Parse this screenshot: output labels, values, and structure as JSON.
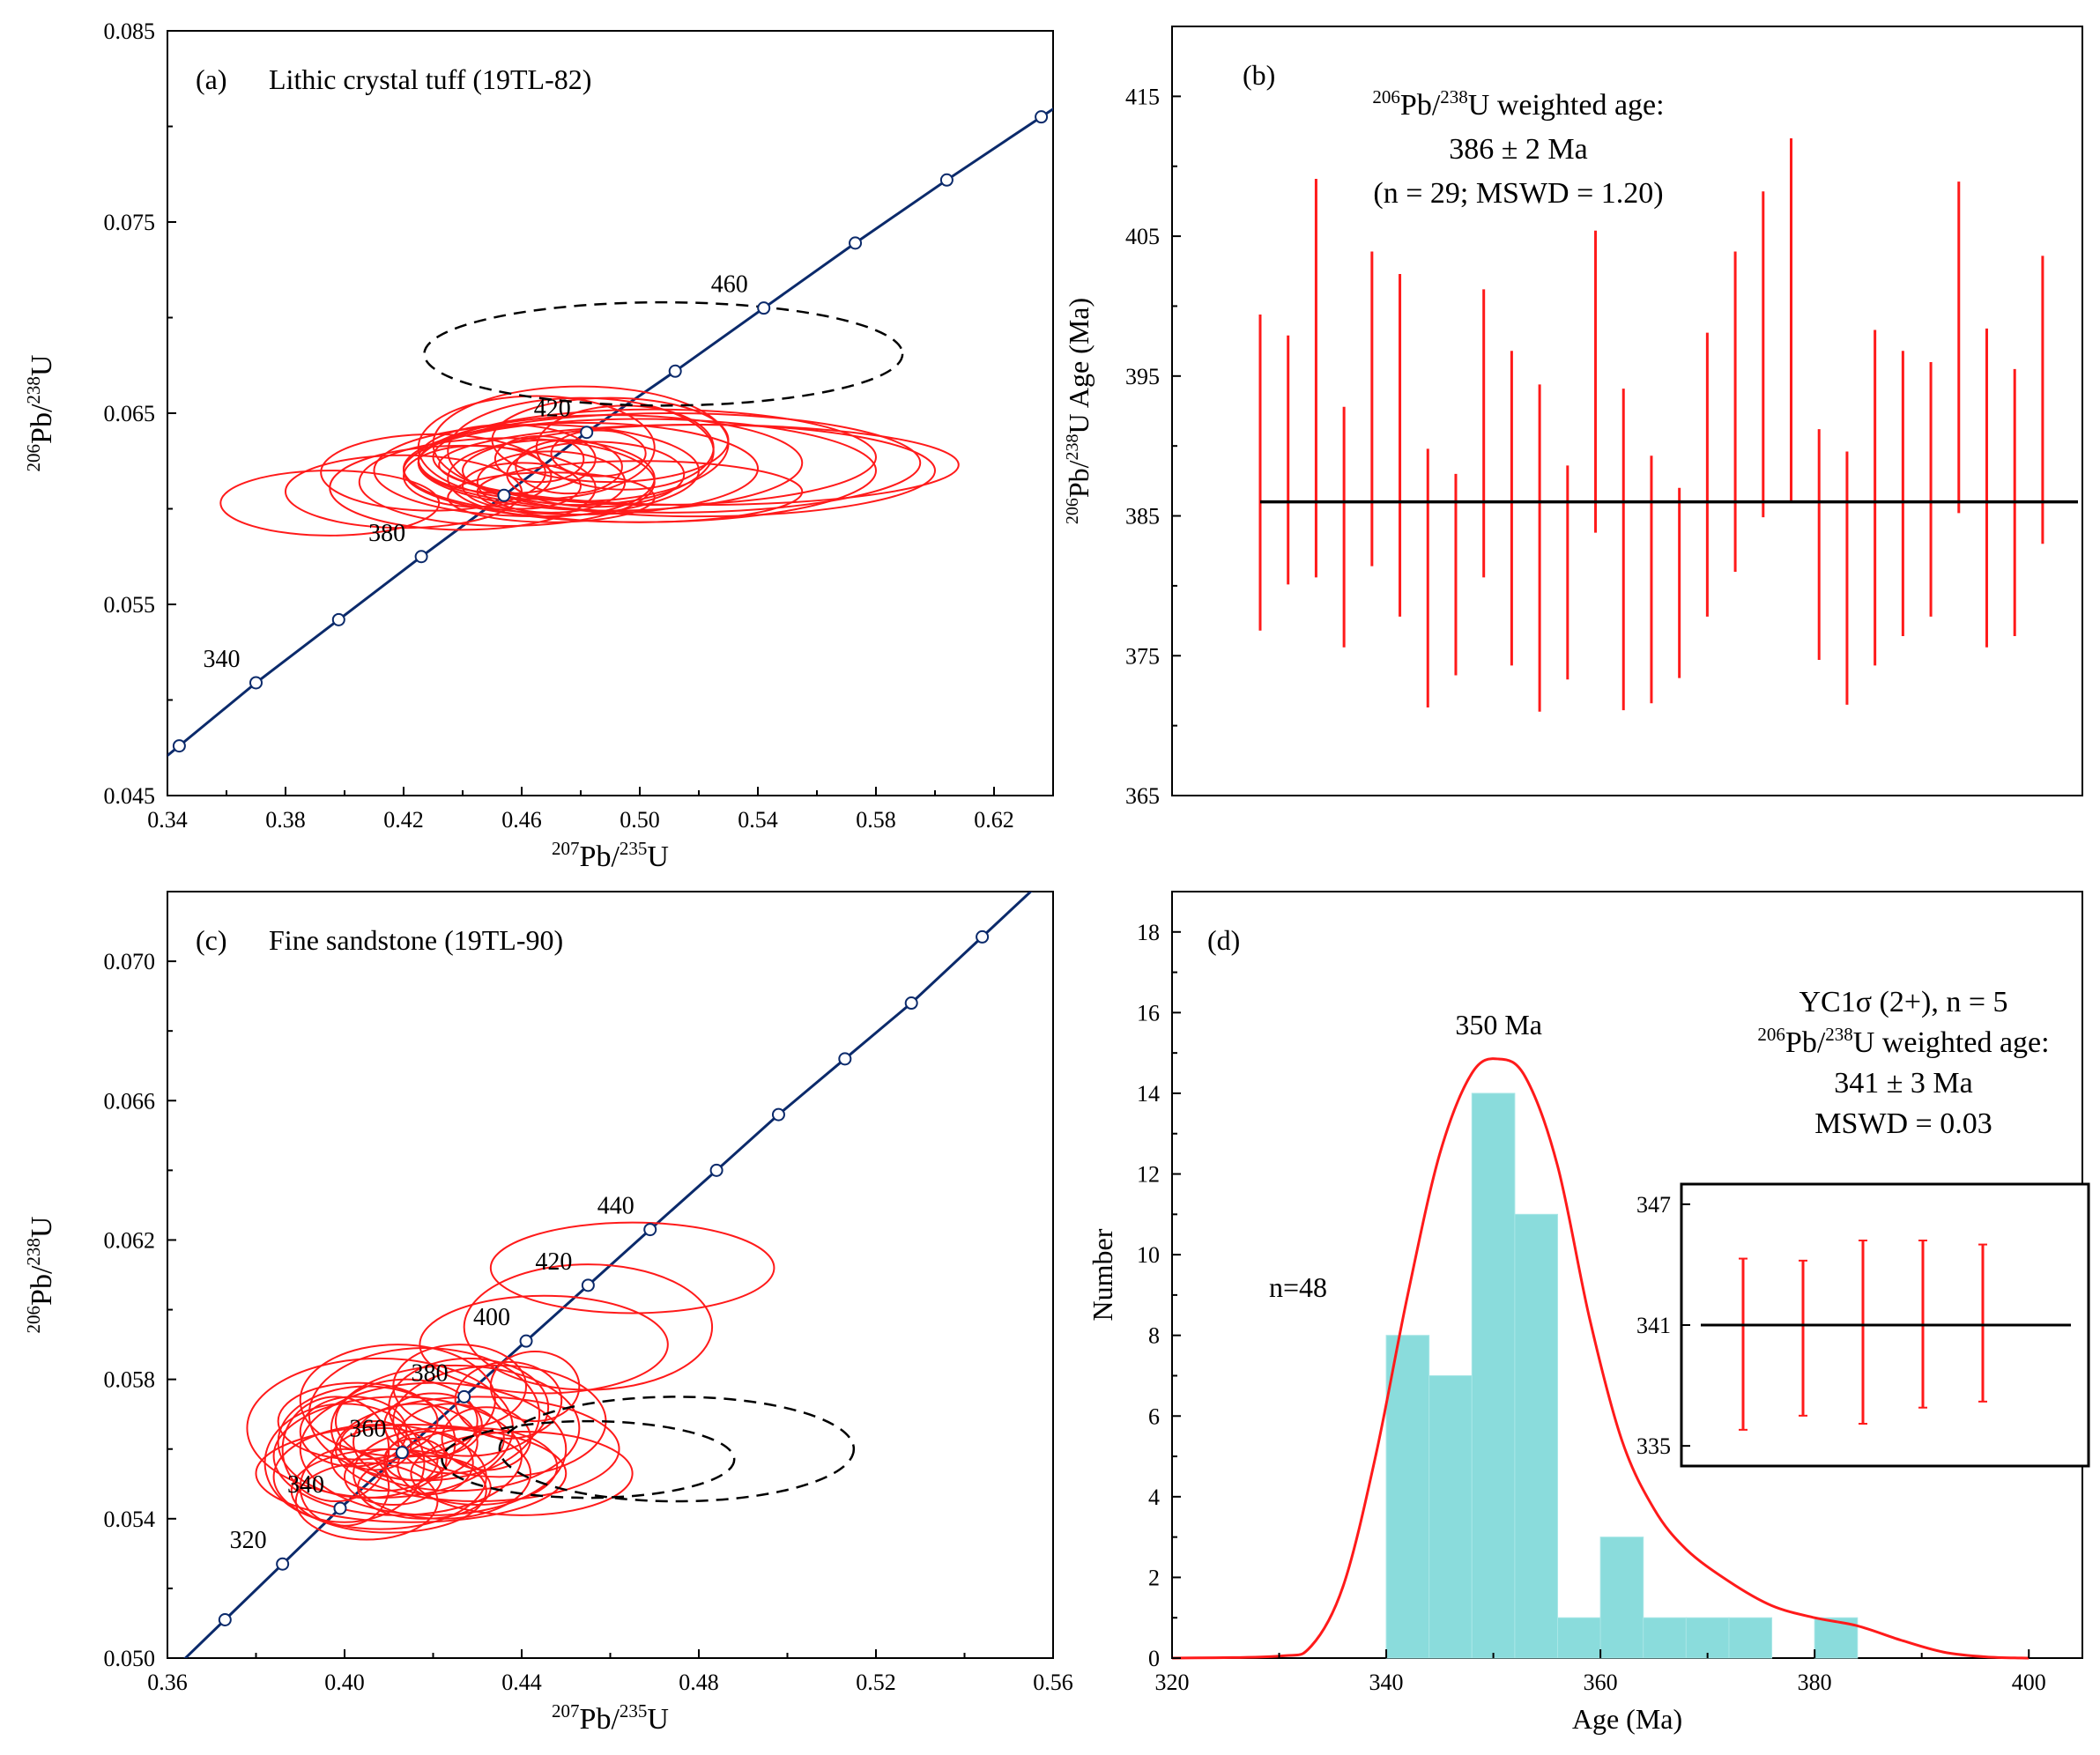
{
  "colors": {
    "concordia": "#0b2a6b",
    "ellipse": "#ff1a1a",
    "dashed": "#000000",
    "bar": "#8adcdc",
    "kde": "#ff1a1a",
    "mean": "#000000"
  },
  "chart_data": [
    {
      "id": "a",
      "type": "scatter",
      "subtype": "concordia",
      "panel_label": "(a)",
      "title": "Lithic crystal tuff (19TL-82)",
      "xlabel_parts": [
        "207",
        "Pb/",
        "235",
        "U"
      ],
      "ylabel_parts": [
        "206",
        "Pb/",
        "238",
        "U"
      ],
      "xlim": [
        0.34,
        0.64
      ],
      "ylim": [
        0.045,
        0.085
      ],
      "x_ticks": [
        0.34,
        0.38,
        0.42,
        0.46,
        0.5,
        0.54,
        0.58,
        0.62
      ],
      "x_tick_labels": [
        "0.34",
        "0.38",
        "0.42",
        "0.46",
        "0.50",
        "0.54",
        "0.58",
        "0.62"
      ],
      "y_ticks": [
        0.045,
        0.055,
        0.065,
        0.075,
        0.085
      ],
      "y_tick_labels": [
        "0.045",
        "0.055",
        "0.065",
        "0.075",
        "0.085"
      ],
      "age_labels": [
        {
          "age": 340,
          "text": "340"
        },
        {
          "age": 380,
          "text": "380"
        },
        {
          "age": 420,
          "text": "420"
        },
        {
          "age": 460,
          "text": "460"
        }
      ],
      "concordia_points": [
        {
          "x": 0.344,
          "y": 0.0476
        },
        {
          "x": 0.37,
          "y": 0.0509
        },
        {
          "x": 0.398,
          "y": 0.0542
        },
        {
          "x": 0.426,
          "y": 0.0575
        },
        {
          "x": 0.454,
          "y": 0.0607
        },
        {
          "x": 0.482,
          "y": 0.064
        },
        {
          "x": 0.512,
          "y": 0.0672
        },
        {
          "x": 0.542,
          "y": 0.0705
        },
        {
          "x": 0.573,
          "y": 0.0739
        },
        {
          "x": 0.604,
          "y": 0.0772
        },
        {
          "x": 0.636,
          "y": 0.0805
        }
      ],
      "ellipses": [
        {
          "cx": 0.395,
          "cy": 0.0603,
          "rx": 0.037,
          "ry": 0.0017
        },
        {
          "cx": 0.42,
          "cy": 0.0609,
          "rx": 0.04,
          "ry": 0.0019
        },
        {
          "cx": 0.44,
          "cy": 0.0611,
          "rx": 0.045,
          "ry": 0.0022
        },
        {
          "cx": 0.455,
          "cy": 0.0614,
          "rx": 0.05,
          "ry": 0.0023
        },
        {
          "cx": 0.43,
          "cy": 0.0619,
          "rx": 0.038,
          "ry": 0.002
        },
        {
          "cx": 0.465,
          "cy": 0.062,
          "rx": 0.055,
          "ry": 0.0024
        },
        {
          "cx": 0.47,
          "cy": 0.0616,
          "rx": 0.035,
          "ry": 0.002
        },
        {
          "cx": 0.48,
          "cy": 0.0621,
          "rx": 0.06,
          "ry": 0.0024
        },
        {
          "cx": 0.49,
          "cy": 0.0624,
          "rx": 0.065,
          "ry": 0.0025
        },
        {
          "cx": 0.5,
          "cy": 0.062,
          "rx": 0.08,
          "ry": 0.0027
        },
        {
          "cx": 0.51,
          "cy": 0.0624,
          "rx": 0.085,
          "ry": 0.0026
        },
        {
          "cx": 0.52,
          "cy": 0.062,
          "rx": 0.08,
          "ry": 0.0024
        },
        {
          "cx": 0.52,
          "cy": 0.0623,
          "rx": 0.088,
          "ry": 0.0021
        },
        {
          "cx": 0.505,
          "cy": 0.0627,
          "rx": 0.075,
          "ry": 0.0025
        },
        {
          "cx": 0.48,
          "cy": 0.063,
          "rx": 0.045,
          "ry": 0.0028
        },
        {
          "cx": 0.465,
          "cy": 0.0632,
          "rx": 0.04,
          "ry": 0.0027
        },
        {
          "cx": 0.49,
          "cy": 0.0636,
          "rx": 0.04,
          "ry": 0.0022
        },
        {
          "cx": 0.455,
          "cy": 0.0626,
          "rx": 0.03,
          "ry": 0.0018
        },
        {
          "cx": 0.47,
          "cy": 0.0614,
          "rx": 0.025,
          "ry": 0.0016
        },
        {
          "cx": 0.485,
          "cy": 0.0618,
          "rx": 0.03,
          "ry": 0.0017
        },
        {
          "cx": 0.476,
          "cy": 0.0622,
          "rx": 0.018,
          "ry": 0.0014
        },
        {
          "cx": 0.466,
          "cy": 0.0626,
          "rx": 0.015,
          "ry": 0.0012
        },
        {
          "cx": 0.486,
          "cy": 0.0629,
          "rx": 0.016,
          "ry": 0.0012
        },
        {
          "cx": 0.445,
          "cy": 0.0617,
          "rx": 0.025,
          "ry": 0.0016
        },
        {
          "cx": 0.5,
          "cy": 0.0609,
          "rx": 0.055,
          "ry": 0.0016
        },
        {
          "cx": 0.47,
          "cy": 0.0606,
          "rx": 0.035,
          "ry": 0.0013
        },
        {
          "cx": 0.495,
          "cy": 0.0632,
          "rx": 0.03,
          "ry": 0.0022
        },
        {
          "cx": 0.48,
          "cy": 0.0634,
          "rx": 0.05,
          "ry": 0.003
        },
        {
          "cx": 0.46,
          "cy": 0.0612,
          "rx": 0.02,
          "ry": 0.0012
        }
      ],
      "dashed_ellipses": [
        {
          "cx": 0.508,
          "cy": 0.0681,
          "rx": 0.081,
          "ry": 0.0027
        }
      ]
    },
    {
      "id": "b",
      "type": "errorbar",
      "panel_label": "(b)",
      "annotation_line1_parts": [
        "206",
        "Pb/",
        "238",
        "U weighted age:"
      ],
      "annotation_line2": "386 ± 2 Ma",
      "annotation_line3": "(n = 29; MSWD = 1.20)",
      "ylabel_parts": [
        "206",
        "Pb/",
        "238",
        "U Age (Ma)"
      ],
      "ylim": [
        365,
        420
      ],
      "y_ticks": [
        365,
        375,
        385,
        395,
        405,
        415
      ],
      "y_tick_labels": [
        "365",
        "375",
        "385",
        "395",
        "405",
        "415"
      ],
      "mean": 386.0,
      "intervals": [
        [
          376.8,
          399.4
        ],
        [
          380.1,
          397.9
        ],
        [
          380.6,
          409.1
        ],
        [
          375.6,
          392.8
        ],
        [
          381.4,
          403.9
        ],
        [
          377.8,
          402.3
        ],
        [
          371.3,
          389.8
        ],
        [
          373.6,
          388.0
        ],
        [
          380.6,
          401.2
        ],
        [
          374.3,
          396.8
        ],
        [
          371.0,
          394.4
        ],
        [
          373.3,
          388.6
        ],
        [
          383.8,
          405.4
        ],
        [
          371.1,
          394.1
        ],
        [
          371.6,
          389.3
        ],
        [
          373.4,
          387.0
        ],
        [
          377.8,
          398.1
        ],
        [
          381.0,
          403.9
        ],
        [
          384.9,
          408.2
        ],
        [
          386.0,
          412.0
        ],
        [
          374.7,
          391.2
        ],
        [
          371.5,
          389.6
        ],
        [
          374.3,
          398.3
        ],
        [
          376.4,
          396.8
        ],
        [
          377.8,
          396.0
        ],
        [
          385.2,
          408.9
        ],
        [
          375.6,
          398.4
        ],
        [
          376.4,
          395.5
        ],
        [
          383.0,
          403.6
        ]
      ]
    },
    {
      "id": "c",
      "type": "scatter",
      "subtype": "concordia",
      "panel_label": "(c)",
      "title": "Fine sandstone (19TL-90)",
      "xlabel_parts": [
        "207",
        "Pb/",
        "235",
        "U"
      ],
      "ylabel_parts": [
        "206",
        "Pb/",
        "238",
        "U"
      ],
      "xlim": [
        0.36,
        0.56
      ],
      "ylim": [
        0.05,
        0.072
      ],
      "x_ticks": [
        0.36,
        0.4,
        0.44,
        0.48,
        0.52,
        0.56
      ],
      "x_tick_labels": [
        "0.36",
        "0.40",
        "0.44",
        "0.48",
        "0.52",
        "0.56"
      ],
      "y_ticks": [
        0.05,
        0.054,
        0.058,
        0.062,
        0.066,
        0.07
      ],
      "y_tick_labels": [
        "0.050",
        "0.054",
        "0.058",
        "0.062",
        "0.066",
        "0.070"
      ],
      "age_labels": [
        {
          "age": 320,
          "text": "320"
        },
        {
          "age": 340,
          "text": "340"
        },
        {
          "age": 360,
          "text": "360"
        },
        {
          "age": 380,
          "text": "380"
        },
        {
          "age": 400,
          "text": "400"
        },
        {
          "age": 420,
          "text": "420"
        },
        {
          "age": 440,
          "text": "440"
        }
      ],
      "concordia_points": [
        {
          "x": 0.373,
          "y": 0.0511
        },
        {
          "x": 0.386,
          "y": 0.0527
        },
        {
          "x": 0.399,
          "y": 0.0543
        },
        {
          "x": 0.413,
          "y": 0.0559
        },
        {
          "x": 0.427,
          "y": 0.0575
        },
        {
          "x": 0.441,
          "y": 0.0591
        },
        {
          "x": 0.455,
          "y": 0.0607
        },
        {
          "x": 0.469,
          "y": 0.0623
        },
        {
          "x": 0.484,
          "y": 0.064
        },
        {
          "x": 0.498,
          "y": 0.0656
        },
        {
          "x": 0.513,
          "y": 0.0672
        },
        {
          "x": 0.528,
          "y": 0.0688
        },
        {
          "x": 0.544,
          "y": 0.0707
        }
      ],
      "ellipses": [
        {
          "cx": 0.408,
          "cy": 0.0552,
          "rx": 0.024,
          "ry": 0.0015
        },
        {
          "cx": 0.412,
          "cy": 0.0558,
          "rx": 0.028,
          "ry": 0.0017
        },
        {
          "cx": 0.405,
          "cy": 0.0562,
          "rx": 0.02,
          "ry": 0.0016
        },
        {
          "cx": 0.42,
          "cy": 0.056,
          "rx": 0.03,
          "ry": 0.0019
        },
        {
          "cx": 0.415,
          "cy": 0.0553,
          "rx": 0.035,
          "ry": 0.0014
        },
        {
          "cx": 0.41,
          "cy": 0.0548,
          "rx": 0.022,
          "ry": 0.0012
        },
        {
          "cx": 0.425,
          "cy": 0.0566,
          "rx": 0.028,
          "ry": 0.0018
        },
        {
          "cx": 0.4,
          "cy": 0.0556,
          "rx": 0.018,
          "ry": 0.0017
        },
        {
          "cx": 0.418,
          "cy": 0.057,
          "rx": 0.026,
          "ry": 0.0019
        },
        {
          "cx": 0.43,
          "cy": 0.056,
          "rx": 0.032,
          "ry": 0.0015
        },
        {
          "cx": 0.408,
          "cy": 0.0566,
          "rx": 0.03,
          "ry": 0.002
        },
        {
          "cx": 0.422,
          "cy": 0.0553,
          "rx": 0.02,
          "ry": 0.0013
        },
        {
          "cx": 0.412,
          "cy": 0.0574,
          "rx": 0.022,
          "ry": 0.0016
        },
        {
          "cx": 0.405,
          "cy": 0.0545,
          "rx": 0.016,
          "ry": 0.0011
        },
        {
          "cx": 0.428,
          "cy": 0.0572,
          "rx": 0.018,
          "ry": 0.0014
        },
        {
          "cx": 0.416,
          "cy": 0.0562,
          "rx": 0.014,
          "ry": 0.0011
        },
        {
          "cx": 0.409,
          "cy": 0.0557,
          "rx": 0.012,
          "ry": 0.0009
        },
        {
          "cx": 0.419,
          "cy": 0.0556,
          "rx": 0.01,
          "ry": 0.0009
        },
        {
          "cx": 0.402,
          "cy": 0.0565,
          "rx": 0.012,
          "ry": 0.001
        },
        {
          "cx": 0.424,
          "cy": 0.0563,
          "rx": 0.012,
          "ry": 0.001
        },
        {
          "cx": 0.398,
          "cy": 0.056,
          "rx": 0.012,
          "ry": 0.0015
        },
        {
          "cx": 0.435,
          "cy": 0.0568,
          "rx": 0.024,
          "ry": 0.0016
        },
        {
          "cx": 0.44,
          "cy": 0.0553,
          "rx": 0.025,
          "ry": 0.0012
        },
        {
          "cx": 0.414,
          "cy": 0.0568,
          "rx": 0.016,
          "ry": 0.0012
        },
        {
          "cx": 0.43,
          "cy": 0.0555,
          "rx": 0.018,
          "ry": 0.0011
        },
        {
          "cx": 0.4,
          "cy": 0.0549,
          "rx": 0.01,
          "ry": 0.0011
        },
        {
          "cx": 0.418,
          "cy": 0.0549,
          "rx": 0.015,
          "ry": 0.0009
        },
        {
          "cx": 0.426,
          "cy": 0.0578,
          "rx": 0.015,
          "ry": 0.0012
        },
        {
          "cx": 0.437,
          "cy": 0.0574,
          "rx": 0.012,
          "ry": 0.0011
        },
        {
          "cx": 0.443,
          "cy": 0.0578,
          "rx": 0.01,
          "ry": 0.001
        },
        {
          "cx": 0.403,
          "cy": 0.0568,
          "rx": 0.018,
          "ry": 0.0011
        },
        {
          "cx": 0.432,
          "cy": 0.0563,
          "rx": 0.01,
          "ry": 0.0009
        },
        {
          "cx": 0.411,
          "cy": 0.0552,
          "rx": 0.011,
          "ry": 0.0008
        },
        {
          "cx": 0.42,
          "cy": 0.0567,
          "rx": 0.011,
          "ry": 0.0009
        },
        {
          "cx": 0.407,
          "cy": 0.0561,
          "rx": 0.008,
          "ry": 0.0007
        },
        {
          "cx": 0.416,
          "cy": 0.0557,
          "rx": 0.007,
          "ry": 0.0006
        },
        {
          "cx": 0.445,
          "cy": 0.059,
          "rx": 0.028,
          "ry": 0.0014
        },
        {
          "cx": 0.455,
          "cy": 0.0595,
          "rx": 0.028,
          "ry": 0.0018
        },
        {
          "cx": 0.465,
          "cy": 0.0612,
          "rx": 0.032,
          "ry": 0.0013
        }
      ],
      "dashed_ellipses": [
        {
          "cx": 0.475,
          "cy": 0.056,
          "rx": 0.04,
          "ry": 0.0015
        },
        {
          "cx": 0.455,
          "cy": 0.0557,
          "rx": 0.033,
          "ry": 0.0011
        }
      ]
    },
    {
      "id": "d",
      "type": "bar",
      "subtype": "histogram_kde",
      "panel_label": "(d)",
      "xlabel": "Age (Ma)",
      "ylabel": "Number",
      "xlim": [
        320,
        405
      ],
      "ylim": [
        0,
        19
      ],
      "x_ticks": [
        320,
        340,
        360,
        380,
        400
      ],
      "x_tick_labels": [
        "320",
        "340",
        "360",
        "380",
        "400"
      ],
      "y_ticks": [
        0,
        2,
        4,
        6,
        8,
        10,
        12,
        14,
        16,
        18
      ],
      "y_tick_labels": [
        "0",
        "2",
        "4",
        "6",
        "8",
        "10",
        "12",
        "14",
        "16",
        "18"
      ],
      "bins": [
        {
          "x0": 340,
          "x1": 344,
          "count": 8
        },
        {
          "x0": 344,
          "x1": 348,
          "count": 7
        },
        {
          "x0": 348,
          "x1": 352,
          "count": 14
        },
        {
          "x0": 352,
          "x1": 356,
          "count": 11
        },
        {
          "x0": 356,
          "x1": 360,
          "count": 1
        },
        {
          "x0": 360,
          "x1": 364,
          "count": 3
        },
        {
          "x0": 364,
          "x1": 368,
          "count": 1
        },
        {
          "x0": 368,
          "x1": 372,
          "count": 1
        },
        {
          "x0": 372,
          "x1": 376,
          "count": 1
        },
        {
          "x0": 380,
          "x1": 384,
          "count": 1
        }
      ],
      "kde": {
        "x": [
          320,
          330,
          333,
          336,
          339,
          342,
          345,
          348,
          350.5,
          353,
          356,
          359,
          362,
          365,
          368,
          372,
          376,
          380,
          384,
          388,
          392,
          396,
          400
        ],
        "y": [
          0,
          0.05,
          0.3,
          1.8,
          5.0,
          9.0,
          12.5,
          14.5,
          14.85,
          14.4,
          12.2,
          8.4,
          5.4,
          3.7,
          2.7,
          1.9,
          1.3,
          1.0,
          0.8,
          0.45,
          0.15,
          0.03,
          0
        ]
      },
      "peak_label": "350 Ma",
      "n_label": "n=48",
      "annotation_line1": "YC1σ (2+), n = 5",
      "annotation_line2_parts": [
        "206",
        "Pb/",
        "238",
        "U weighted age:"
      ],
      "annotation_line3": "341 ± 3 Ma",
      "annotation_line4": "MSWD = 0.03",
      "inset": {
        "ylim": [
          334,
          348
        ],
        "y_ticks": [
          335,
          341,
          347
        ],
        "y_tick_labels": [
          "335",
          "341",
          "347"
        ],
        "mean": 341.0,
        "intervals": [
          [
            335.8,
            344.3
          ],
          [
            336.5,
            344.2
          ],
          [
            336.1,
            345.2
          ],
          [
            336.9,
            345.2
          ],
          [
            337.2,
            345.0
          ]
        ]
      }
    }
  ]
}
